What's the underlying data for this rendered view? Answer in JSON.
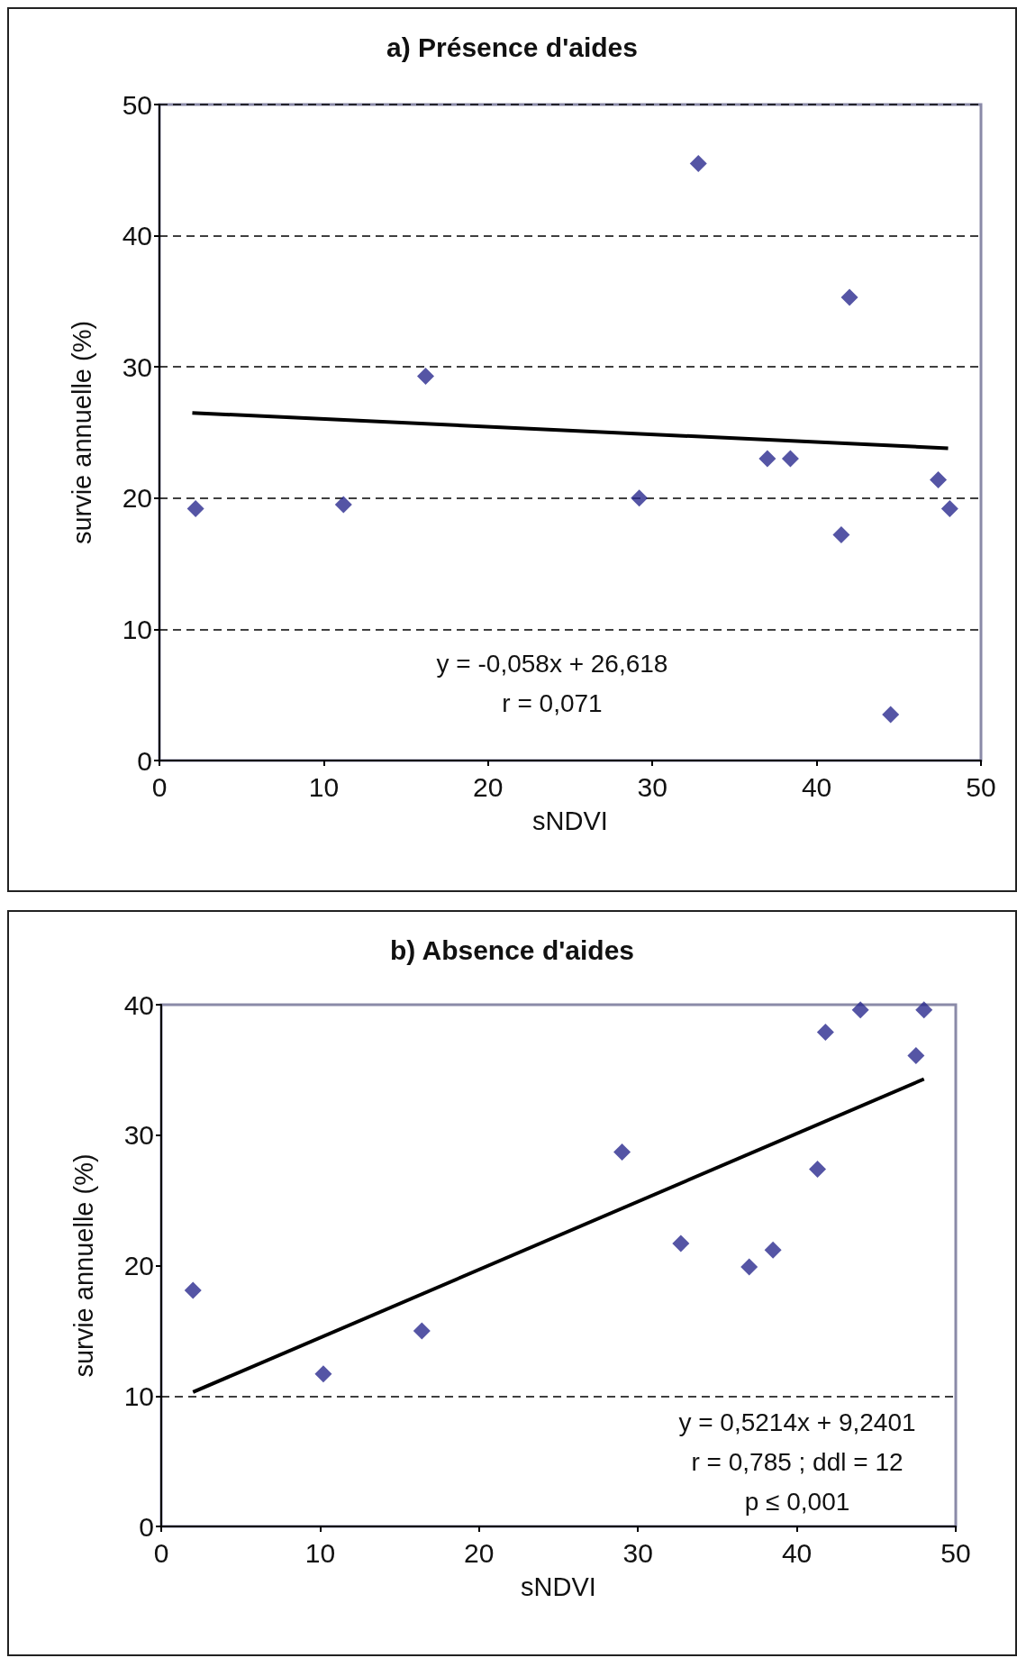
{
  "chart_data": [
    {
      "type": "scatter",
      "title": "a) Présence d'aides",
      "xlabel": "sNDVI",
      "ylabel": "survie annuelle (%)",
      "xlim": [
        0,
        50
      ],
      "xticks": [
        0,
        10,
        20,
        30,
        40,
        50
      ],
      "ylim": [
        0,
        50
      ],
      "yticks": [
        0,
        10,
        20,
        30,
        40,
        50
      ],
      "grid": "y",
      "series": [
        {
          "marker": "diamond",
          "color": "#2b2a8f",
          "x": [
            2.2,
            11.2,
            16.2,
            29.2,
            32.8,
            37.0,
            38.4,
            41.5,
            42.0,
            44.5,
            47.4,
            48.1
          ],
          "values": [
            19.2,
            19.5,
            29.3,
            20.0,
            45.5,
            23.0,
            23.0,
            17.2,
            35.3,
            3.5,
            21.4,
            19.2
          ]
        },
        {
          "type": "line",
          "marker": "none",
          "color": "#000000",
          "x": [
            2,
            48
          ],
          "values": [
            26.5,
            23.8
          ]
        }
      ],
      "annotations": [
        "y = -0,058x + 26,618",
        "r = 0,071"
      ]
    },
    {
      "type": "scatter",
      "title": "b) Absence d'aides",
      "xlabel": "sNDVI",
      "ylabel": "survie annuelle (%)",
      "xlim": [
        0,
        50
      ],
      "xticks": [
        0,
        10,
        20,
        30,
        40,
        50
      ],
      "ylim": [
        0,
        40
      ],
      "yticks": [
        0,
        10,
        20,
        30,
        40
      ],
      "grid": false,
      "ref_lines": [
        {
          "axis": "y",
          "value": 10,
          "label": null,
          "line_style": "dashed",
          "color": "#000000"
        }
      ],
      "series": [
        {
          "marker": "diamond",
          "color": "#2b2a8f",
          "x": [
            2.0,
            10.2,
            16.4,
            29.0,
            32.7,
            37.0,
            38.5,
            41.3,
            41.8,
            44.0,
            47.5,
            48.0
          ],
          "values": [
            18.1,
            11.7,
            15.0,
            28.7,
            21.7,
            19.9,
            21.2,
            27.4,
            37.9,
            39.6,
            36.1,
            39.6
          ]
        },
        {
          "type": "line",
          "marker": "none",
          "color": "#000000",
          "x": [
            2,
            48
          ],
          "values": [
            10.3,
            34.3
          ]
        }
      ],
      "annotations": [
        "y = 0,5214x + 9,2401",
        "r = 0,785 ; ddl = 12",
        "p ≤ 0,001"
      ]
    }
  ]
}
